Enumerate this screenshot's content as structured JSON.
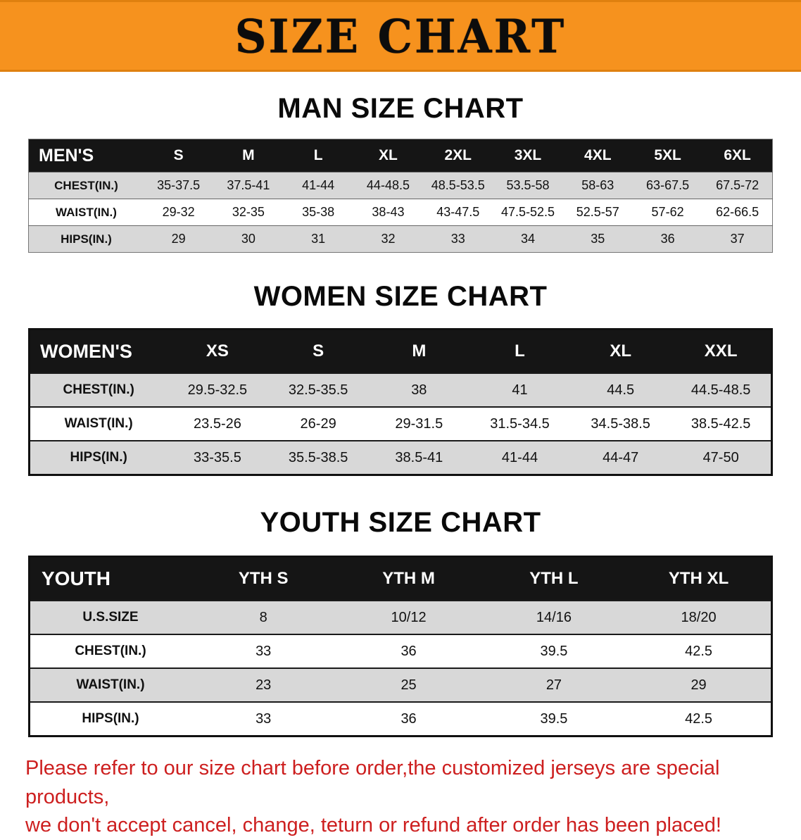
{
  "theme": {
    "banner_bg": "#f6921e",
    "header_bg": "#151515",
    "row_shade": "#d8d8d8",
    "footer_color": "#cd1f1f"
  },
  "banner": {
    "title": "SIZE CHART"
  },
  "sections": [
    {
      "id": "men",
      "heading": "MAN SIZE CHART",
      "table": {
        "header": [
          "MEN'S",
          "S",
          "M",
          "L",
          "XL",
          "2XL",
          "3XL",
          "4XL",
          "5XL",
          "6XL"
        ],
        "rows": [
          [
            "CHEST(IN.)",
            "35-37.5",
            "37.5-41",
            "41-44",
            "44-48.5",
            "48.5-53.5",
            "53.5-58",
            "58-63",
            "63-67.5",
            "67.5-72"
          ],
          [
            "WAIST(IN.)",
            "29-32",
            "32-35",
            "35-38",
            "38-43",
            "43-47.5",
            "47.5-52.5",
            "52.5-57",
            "57-62",
            "62-66.5"
          ],
          [
            "HIPS(IN.)",
            "29",
            "30",
            "31",
            "32",
            "33",
            "34",
            "35",
            "36",
            "37"
          ]
        ]
      }
    },
    {
      "id": "women",
      "heading": "WOMEN SIZE CHART",
      "table": {
        "header": [
          "WOMEN'S",
          "XS",
          "S",
          "M",
          "L",
          "XL",
          "XXL"
        ],
        "rows": [
          [
            "CHEST(IN.)",
            "29.5-32.5",
            "32.5-35.5",
            "38",
            "41",
            "44.5",
            "44.5-48.5"
          ],
          [
            "WAIST(IN.)",
            "23.5-26",
            "26-29",
            "29-31.5",
            "31.5-34.5",
            "34.5-38.5",
            "38.5-42.5"
          ],
          [
            "HIPS(IN.)",
            "33-35.5",
            "35.5-38.5",
            "38.5-41",
            "41-44",
            "44-47",
            "47-50"
          ]
        ]
      }
    },
    {
      "id": "youth",
      "heading": "YOUTH SIZE CHART",
      "table": {
        "header": [
          "YOUTH",
          "YTH S",
          "YTH M",
          "YTH L",
          "YTH XL"
        ],
        "rows": [
          [
            "U.S.SIZE",
            "8",
            "10/12",
            "14/16",
            "18/20"
          ],
          [
            "CHEST(IN.)",
            "33",
            "36",
            "39.5",
            "42.5"
          ],
          [
            "WAIST(IN.)",
            "23",
            "25",
            "27",
            "29"
          ],
          [
            "HIPS(IN.)",
            "33",
            "36",
            "39.5",
            "42.5"
          ]
        ]
      }
    }
  ],
  "footer": {
    "line1": "Please refer to our size chart before order,the customized jerseys are special products,",
    "line2": "we don't accept cancel, change, teturn or refund after order has been placed!"
  }
}
